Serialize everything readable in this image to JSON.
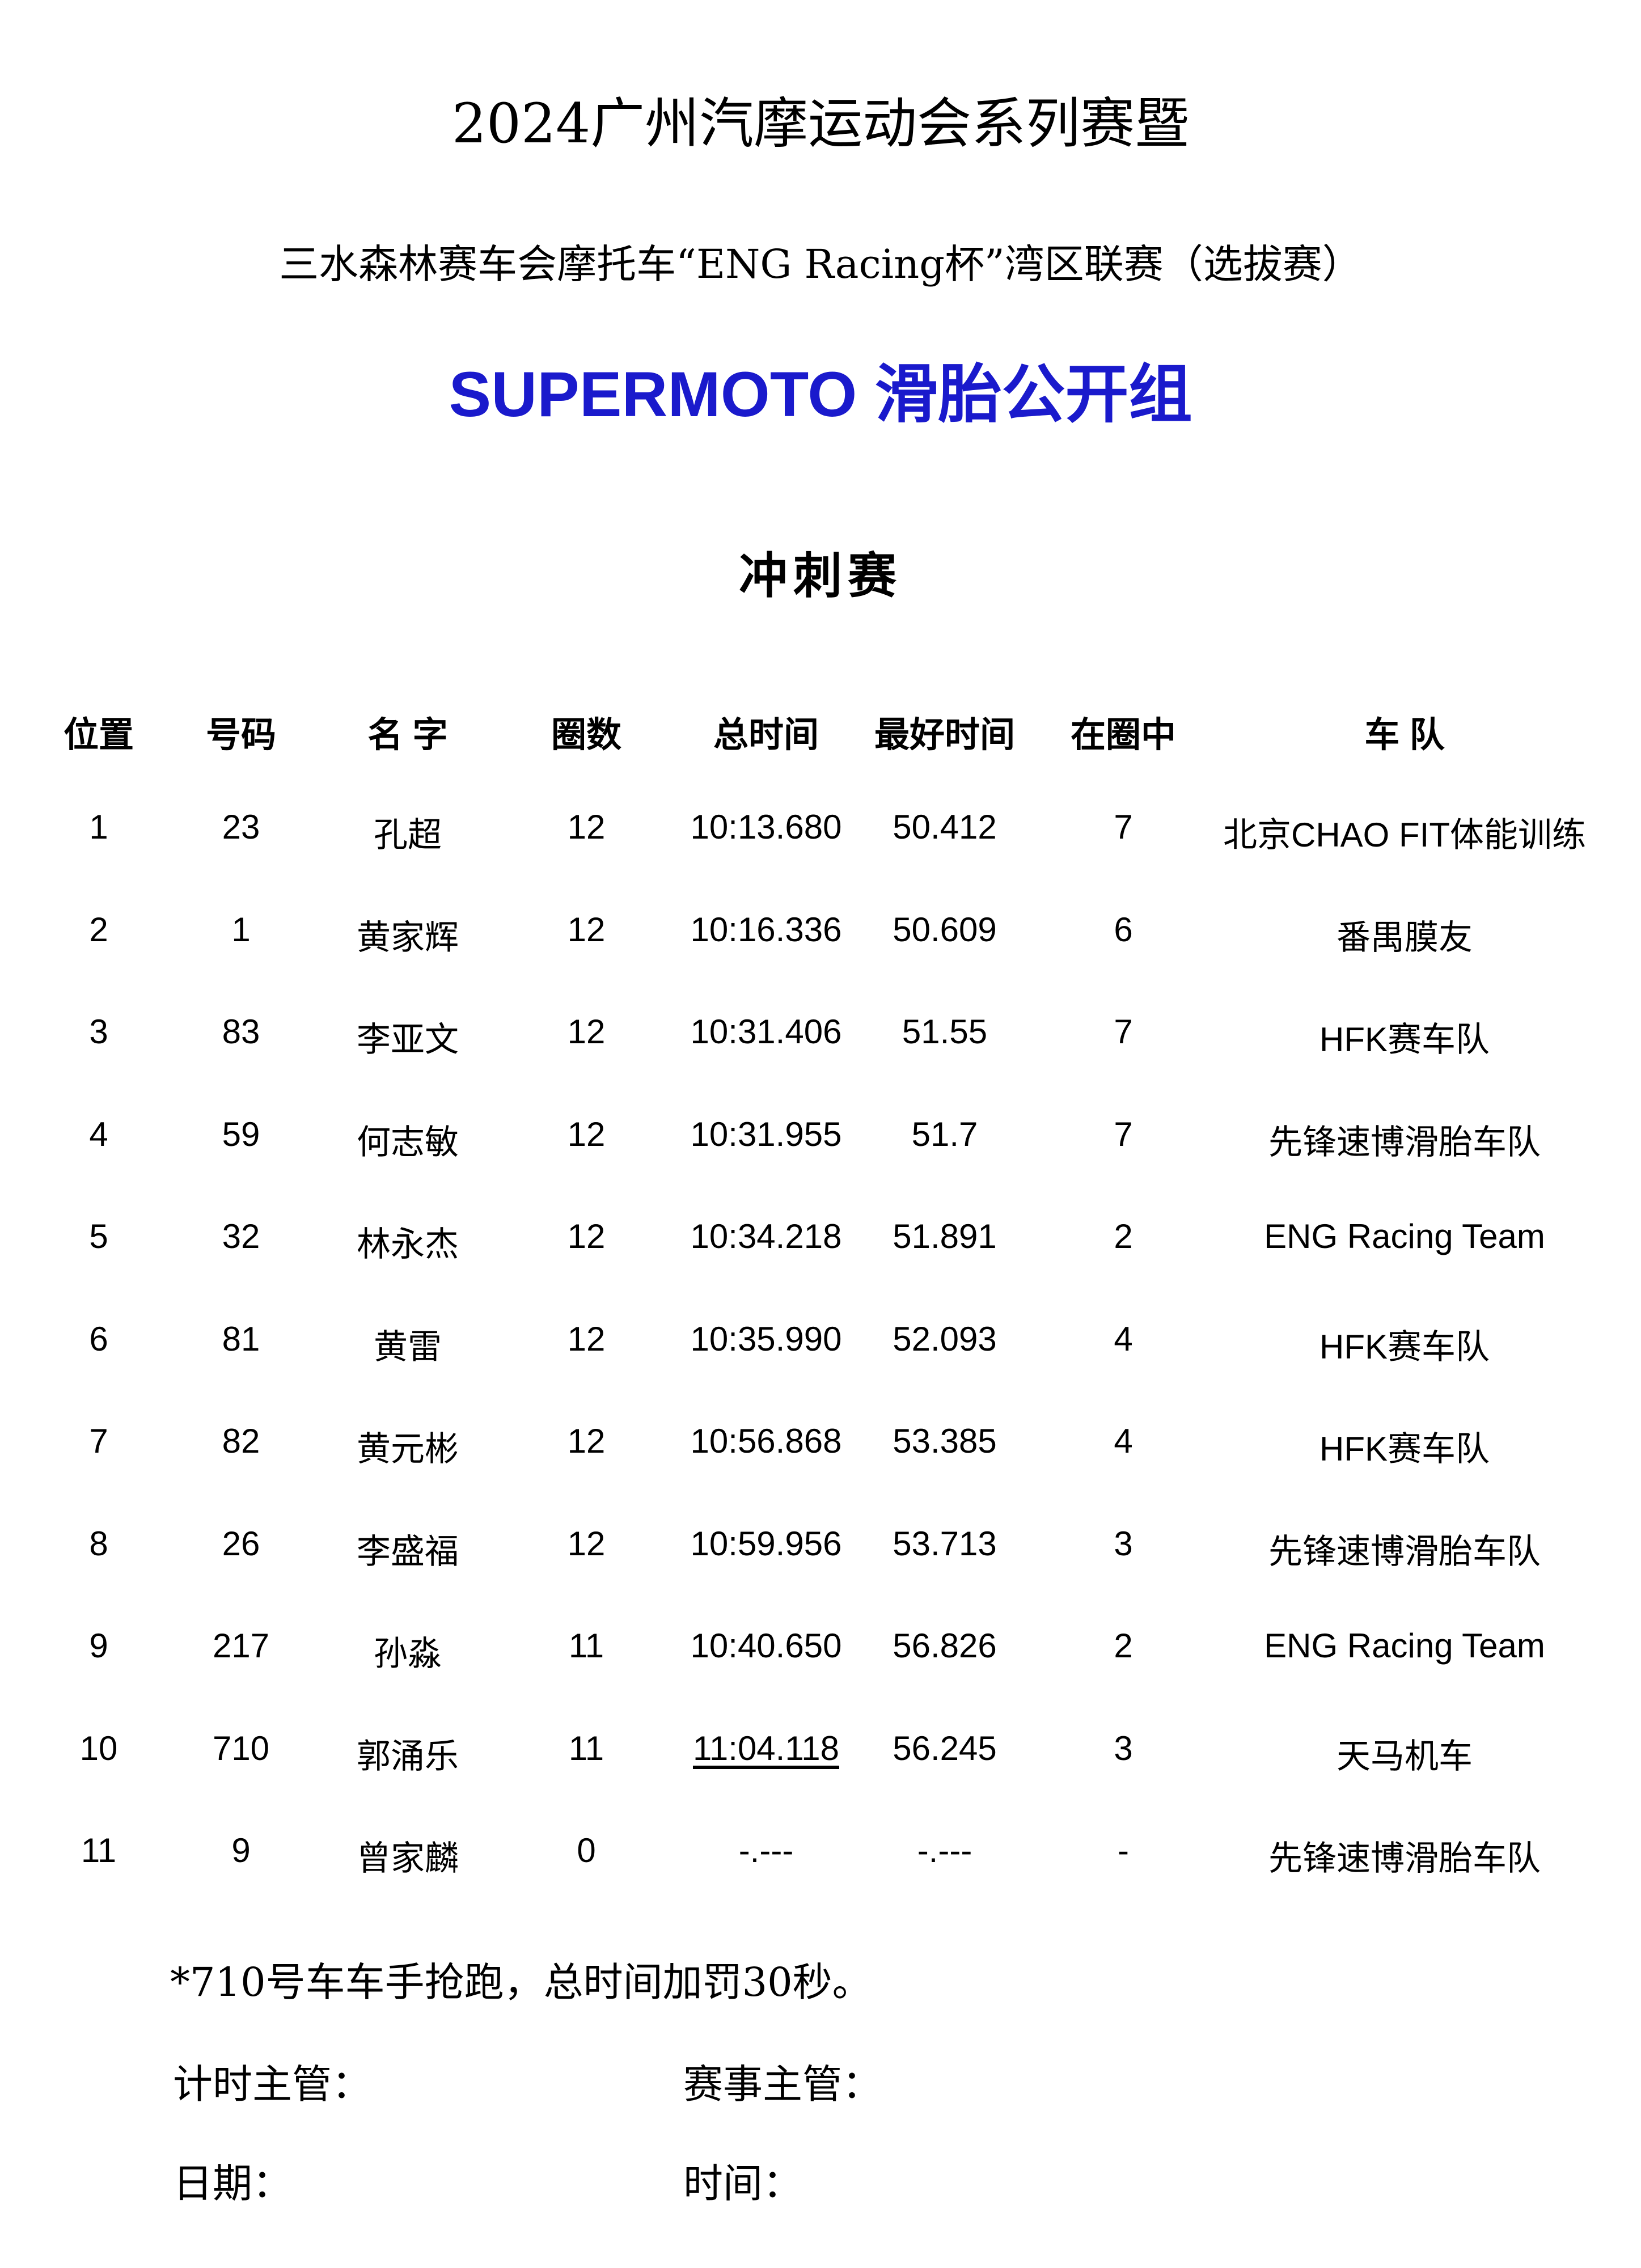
{
  "title": "2024广州汽摩运动会系列赛暨",
  "subtitle": "三水森林赛车会摩托车“ENG Racing杯”湾区联赛（选拔赛）",
  "group": "SUPERMOTO 滑胎公开组",
  "group_color": "#1a1acc",
  "race": "冲刺赛",
  "table": {
    "headers": [
      "位置",
      "号码",
      "名 字",
      "圈数",
      "总时间",
      "最好时间",
      "在圈中",
      "车 队"
    ],
    "rows": [
      [
        "1",
        "23",
        "孔超",
        "12",
        "10:13.680",
        "50.412",
        "7",
        "北京CHAO FIT体能训练"
      ],
      [
        "2",
        "1",
        "黄家辉",
        "12",
        "10:16.336",
        "50.609",
        "6",
        "番禺膜友"
      ],
      [
        "3",
        "83",
        "李亚文",
        "12",
        "10:31.406",
        "51.55",
        "7",
        "HFK赛车队"
      ],
      [
        "4",
        "59",
        "何志敏",
        "12",
        "10:31.955",
        "51.7",
        "7",
        "先锋速博滑胎车队"
      ],
      [
        "5",
        "32",
        "林永杰",
        "12",
        "10:34.218",
        "51.891",
        "2",
        "ENG Racing Team"
      ],
      [
        "6",
        "81",
        "黄雷",
        "12",
        "10:35.990",
        "52.093",
        "4",
        "HFK赛车队"
      ],
      [
        "7",
        "82",
        "黄元彬",
        "12",
        "10:56.868",
        "53.385",
        "4",
        "HFK赛车队"
      ],
      [
        "8",
        "26",
        "李盛福",
        "12",
        "10:59.956",
        "53.713",
        "3",
        "先锋速博滑胎车队"
      ],
      [
        "9",
        "217",
        "孙淼",
        "11",
        "10:40.650",
        "56.826",
        "2",
        "ENG Racing Team"
      ],
      [
        "10",
        "710",
        "郭涌乐",
        "11",
        "11:04.118",
        "56.245",
        "3",
        "天马机车"
      ],
      [
        "11",
        "9",
        "曾家麟",
        "0",
        "-.---",
        "-.---",
        "-",
        "先锋速博滑胎车队"
      ]
    ]
  },
  "footer": {
    "note": "*710号车车手抢跑，总时间加罚30秒。",
    "timing_supervisor": "计时主管：",
    "race_supervisor": "赛事主管：",
    "date": "日期：",
    "time": "时间："
  }
}
